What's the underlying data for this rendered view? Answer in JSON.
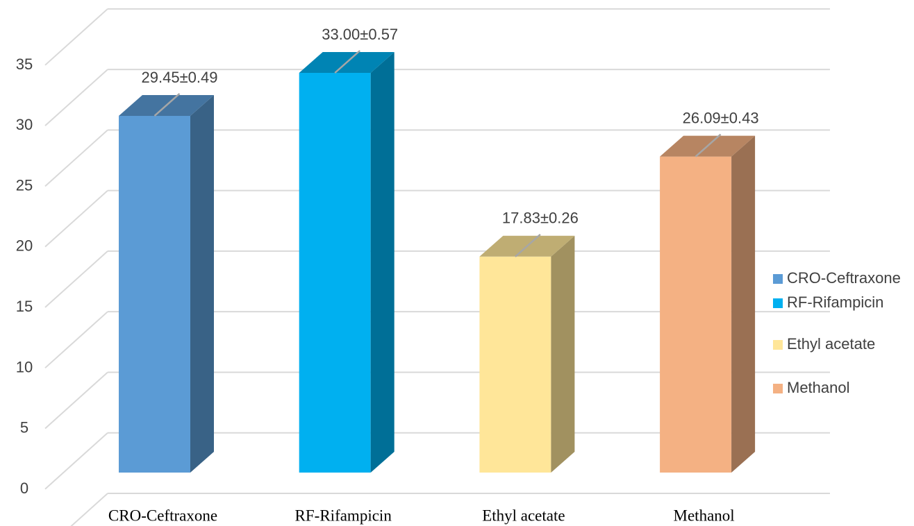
{
  "chart_data": {
    "type": "bar3d",
    "categories": [
      "CRO-Ceftraxone",
      "RF-Rifampicin",
      "Ethyl acetate",
      "Methanol"
    ],
    "values": [
      29.45,
      33.0,
      17.83,
      26.09
    ],
    "errors": [
      0.49,
      0.57,
      0.26,
      0.43
    ],
    "value_labels": [
      "29.45±0.49",
      "33.00±0.57",
      "17.83±0.26",
      "26.09±0.43"
    ],
    "colors": [
      "#5b9bd5",
      "#00b0f0",
      "#ffe699",
      "#f4b183"
    ],
    "ylim": [
      0,
      40
    ],
    "yticks": [
      0,
      5,
      10,
      15,
      20,
      25,
      30,
      35
    ],
    "grid": true,
    "legend": "right"
  }
}
